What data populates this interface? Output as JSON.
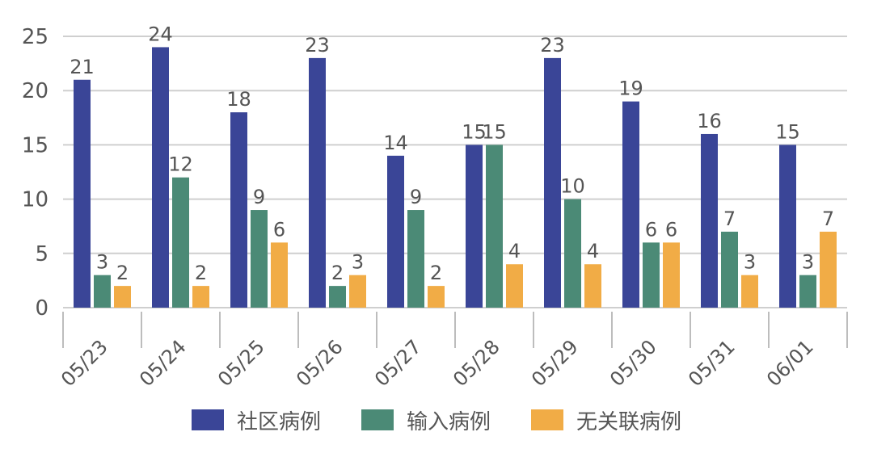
{
  "colors": {
    "series0": "#3a4597",
    "series1": "#4b8a76",
    "series2": "#f1ac46",
    "grid": "#cfcfcf",
    "axis": "#bdbdbd",
    "text": "#555555"
  },
  "chart_data": {
    "type": "bar",
    "categories": [
      "05/23",
      "05/24",
      "05/25",
      "05/26",
      "05/27",
      "05/28",
      "05/29",
      "05/30",
      "05/31",
      "06/01"
    ],
    "series": [
      {
        "name": "社区病例",
        "values": [
          21,
          24,
          18,
          23,
          14,
          15,
          23,
          19,
          16,
          15
        ]
      },
      {
        "name": "输入病例",
        "values": [
          3,
          12,
          9,
          2,
          9,
          15,
          10,
          6,
          7,
          3
        ]
      },
      {
        "name": "无关联病例",
        "values": [
          2,
          2,
          6,
          3,
          2,
          4,
          4,
          6,
          3,
          7
        ]
      }
    ],
    "yticks": [
      0,
      5,
      10,
      15,
      20,
      25
    ],
    "ylim": [
      0,
      25
    ],
    "grid": true,
    "legend_position": "bottom"
  }
}
